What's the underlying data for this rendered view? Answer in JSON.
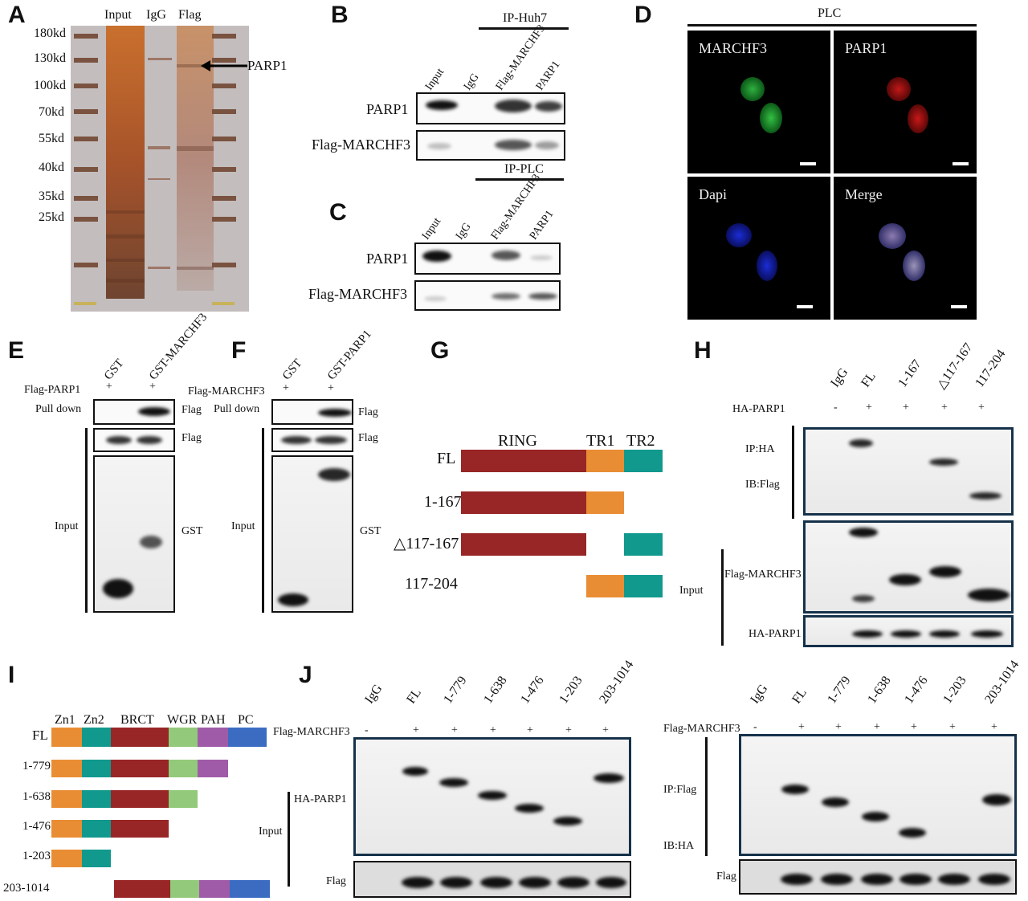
{
  "panels": {
    "A": "A",
    "B": "B",
    "C": "C",
    "D": "D",
    "E": "E",
    "F": "F",
    "G": "G",
    "H": "H",
    "I": "I",
    "J": "J"
  },
  "panelA": {
    "markers": [
      "180kd",
      "130kd",
      "100kd",
      "70kd",
      "55kd",
      "40kd",
      "35kd",
      "25kd"
    ],
    "lanes": [
      "Input",
      "IgG",
      "Flag"
    ],
    "arrow_label": "PARP1"
  },
  "panelB": {
    "ip_label": "IP-Huh7",
    "lanes": [
      "Input",
      "IgG",
      "Flag-MARCHF3",
      "PARP1"
    ],
    "rows": [
      "PARP1",
      "Flag-MARCHF3"
    ]
  },
  "panelC": {
    "ip_label": "IP-PLC",
    "lanes": [
      "Input",
      "IgG",
      "Flag-MARCHF3",
      "PARP1"
    ],
    "rows": [
      "PARP1",
      "Flag-MARCHF3"
    ]
  },
  "panelD": {
    "title": "PLC",
    "channels": [
      "MARCHF3",
      "PARP1",
      "Dapi",
      "Merge"
    ]
  },
  "panelE": {
    "lanes": [
      "GST",
      "GST-MARCHF3"
    ],
    "row_label": "Flag-PARP1",
    "plus": [
      "+",
      "+"
    ],
    "left_labels": [
      "Pull down",
      "Input"
    ],
    "right_labels": [
      "Flag",
      "Flag",
      "GST"
    ]
  },
  "panelF": {
    "lanes": [
      "GST",
      "GST-PARP1"
    ],
    "row_label": "Flag-MARCHF3",
    "plus": [
      "+",
      "+"
    ],
    "left_labels": [
      "Pull down",
      "Input"
    ],
    "right_labels": [
      "Flag",
      "Flag",
      "GST"
    ]
  },
  "panelG": {
    "domains": [
      "RING",
      "TR1",
      "TR2"
    ],
    "constructs": [
      "FL",
      "1-167",
      "△117-167",
      "117-204"
    ],
    "colors": {
      "RING": "#982626",
      "TR1": "#e98d34",
      "TR2": "#12998e"
    }
  },
  "panelH": {
    "lanes": [
      "IgG",
      "FL",
      "1-167",
      "△117-167",
      "117-204"
    ],
    "row_label": "HA-PARP1",
    "signs": [
      "-",
      "+",
      "+",
      "+",
      "+"
    ],
    "left_labels": [
      "IP:HA",
      "IB:Flag",
      "Input"
    ],
    "right_labels": [
      "Flag-MARCHF3",
      "HA-PARP1"
    ]
  },
  "panelI": {
    "domains": [
      "Zn1",
      "Zn2",
      "BRCT",
      "WGR",
      "PAH",
      "PC"
    ],
    "constructs": [
      "FL",
      "1-779",
      "1-638",
      "1-476",
      "1-203",
      "203-1014"
    ],
    "colors": {
      "Zn1": "#e98d34",
      "Zn2": "#12998e",
      "BRCT": "#982626",
      "WGR": "#93c97b",
      "PAH": "#a05ba8",
      "PC": "#3b6cc2"
    }
  },
  "panelJ": {
    "lanes": [
      "IgG",
      "FL",
      "1-779",
      "1-638",
      "1-476",
      "1-203",
      "203-1014"
    ],
    "row_label": "Flag-MARCHF3",
    "signs": [
      "-",
      "+",
      "+",
      "+",
      "+",
      "+",
      "+"
    ],
    "left_labels": [
      "HA-PARP1",
      "Input",
      "Flag"
    ],
    "right_left_labels": [
      "IP:Flag",
      "IB:HA",
      "Flag"
    ]
  }
}
